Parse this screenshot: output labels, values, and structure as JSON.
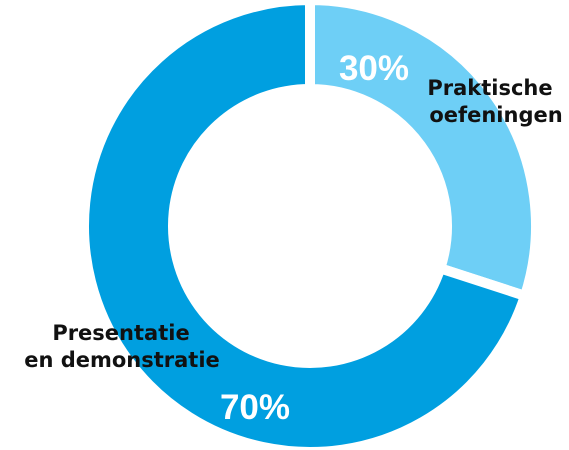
{
  "chart_data": {
    "type": "pie",
    "style": "donut",
    "slices": [
      {
        "label_lines": [
          "Praktische",
          "oefeningen"
        ],
        "value": 30,
        "value_label": "30%",
        "color": "#6ecff6"
      },
      {
        "label_lines": [
          "Presentatie",
          "en demonstratie"
        ],
        "value": 70,
        "value_label": "70%",
        "color": "#009fe0"
      }
    ],
    "background": "#ffffff"
  }
}
